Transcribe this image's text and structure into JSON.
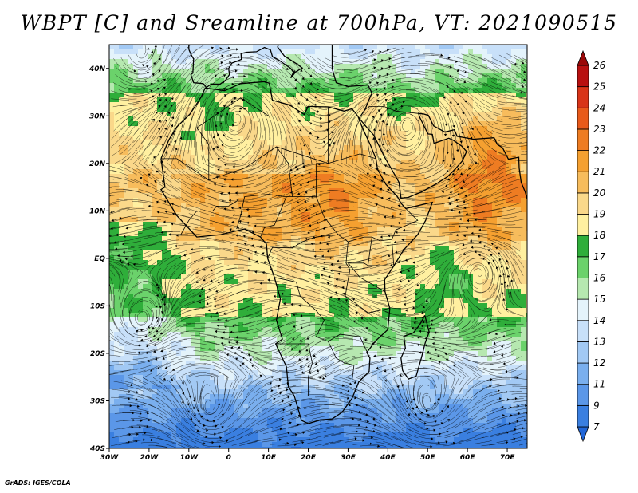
{
  "title": "WBPT [C] and Sreamline at 700hPa, VT: 2021090515",
  "credit": "GrADS: IGES/COLA",
  "map": {
    "lon_range": [
      -30,
      75
    ],
    "lat_range": [
      -40,
      45
    ],
    "lon_ticks": [
      {
        "value": -30,
        "label": "30W"
      },
      {
        "value": -20,
        "label": "20W"
      },
      {
        "value": -10,
        "label": "10W"
      },
      {
        "value": 0,
        "label": "0"
      },
      {
        "value": 10,
        "label": "10E"
      },
      {
        "value": 20,
        "label": "20E"
      },
      {
        "value": 30,
        "label": "30E"
      },
      {
        "value": 40,
        "label": "40E"
      },
      {
        "value": 50,
        "label": "50E"
      },
      {
        "value": 60,
        "label": "60E"
      },
      {
        "value": 70,
        "label": "70E"
      }
    ],
    "lat_ticks": [
      {
        "value": 40,
        "label": "40N"
      },
      {
        "value": 30,
        "label": "30N"
      },
      {
        "value": 20,
        "label": "20N"
      },
      {
        "value": 10,
        "label": "10N"
      },
      {
        "value": 0,
        "label": "EQ"
      },
      {
        "value": -10,
        "label": "10S"
      },
      {
        "value": -20,
        "label": "20S"
      },
      {
        "value": -30,
        "label": "30S"
      },
      {
        "value": -40,
        "label": "40S"
      }
    ]
  },
  "colorbar": {
    "labels": [
      "7",
      "9",
      "11",
      "12",
      "13",
      "14",
      "15",
      "16",
      "17",
      "18",
      "19",
      "20",
      "21",
      "22",
      "23",
      "24",
      "25",
      "26"
    ],
    "colors": [
      "#2166d8",
      "#3a7fe0",
      "#5b97e8",
      "#7aafee",
      "#a2c9f4",
      "#c8e0f9",
      "#e4f3fb",
      "#b6e8b0",
      "#6bd26b",
      "#2fae3a",
      "#fff0a0",
      "#fad88a",
      "#f7bc5c",
      "#f5a030",
      "#ee7c22",
      "#e85a1a",
      "#d83418",
      "#b81010",
      "#9a0808"
    ]
  },
  "vortices": [
    {
      "name": "saharan-high",
      "lon": 2,
      "lat": 30
    },
    {
      "name": "arabian-high",
      "lon": 45,
      "lat": 28
    },
    {
      "name": "indian-ocean-low",
      "lon": 63,
      "lat": -3
    },
    {
      "name": "south-atlantic-eddy",
      "lon": -22,
      "lat": -13
    },
    {
      "name": "south-indian-eddy",
      "lon": 50,
      "lat": -31
    },
    {
      "name": "south-atlantic-cyclone",
      "lon": -5,
      "lat": -32
    },
    {
      "name": "north-atlantic-eddy",
      "lon": -22,
      "lat": 43
    }
  ]
}
